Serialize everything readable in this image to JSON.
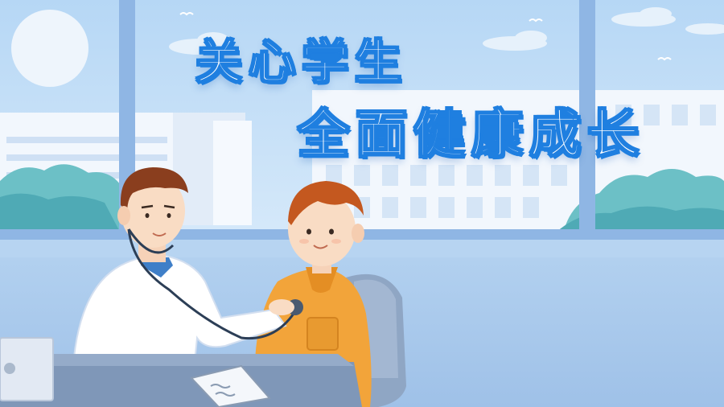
{
  "headline": {
    "line1": "关心学生",
    "line2": "全面健康成长"
  },
  "colors": {
    "sky": "#bcdcf6",
    "title_fill": "#ffffff",
    "title_outline": "#1f7fe0",
    "wall": "#a9c9ec",
    "doctor_coat": "#ffffff",
    "student_sweater": "#f2a43a",
    "desk": "#7f97b8"
  }
}
